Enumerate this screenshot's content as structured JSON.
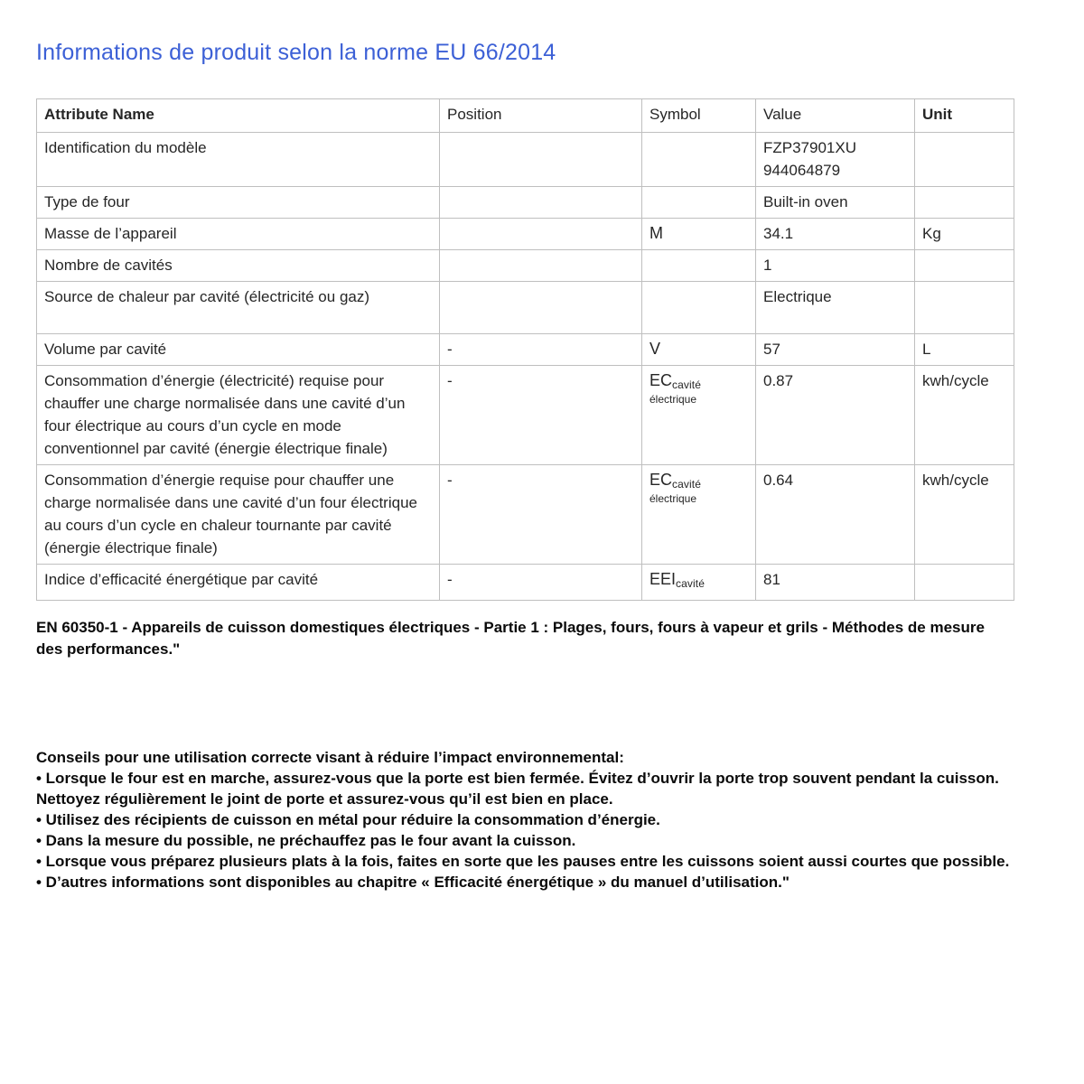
{
  "page": {
    "title": "Informations de produit selon la norme EU 66/2014",
    "title_color": "#3C60D6",
    "text_color": "#262626",
    "border_color": "#bfbfbf"
  },
  "table": {
    "headers": [
      "Attribute Name",
      "Position",
      "Symbol",
      "Value",
      "Unit"
    ],
    "rows": [
      {
        "attribute": "Identification du modèle",
        "position": "",
        "symbol": null,
        "value_lines": [
          "FZP37901XU",
          "944064879"
        ],
        "unit": ""
      },
      {
        "attribute": "Type de four",
        "position": "",
        "symbol": null,
        "value_lines": [
          "Built-in oven"
        ],
        "unit": ""
      },
      {
        "attribute": "Masse de l’appareil",
        "position": "",
        "symbol": {
          "main": "M",
          "sub": "",
          "sub_line2": ""
        },
        "value_lines": [
          "34.1"
        ],
        "unit": "Kg"
      },
      {
        "attribute": "Nombre de cavités",
        "position": "",
        "symbol": null,
        "value_lines": [
          "1"
        ],
        "unit": ""
      },
      {
        "attribute": "Source de chaleur par cavité (électricité ou gaz)",
        "position": "",
        "symbol": null,
        "value_lines": [
          "Electrique"
        ],
        "unit": "",
        "min_lines": 2
      },
      {
        "attribute": "Volume par cavité",
        "position": "-",
        "symbol": {
          "main": "V",
          "sub": "",
          "sub_line2": ""
        },
        "value_lines": [
          "57"
        ],
        "unit": "L"
      },
      {
        "attribute": "Consommation d’énergie (électricité) requise pour chauffer une charge normalisée dans une cavité d’un four électrique au cours d’un cycle en mode conventionnel par cavité (énergie électrique finale)",
        "position": "-",
        "symbol": {
          "main": "EC",
          "sub": "cavité",
          "sub_line2": "électrique"
        },
        "value_lines": [
          "0.87"
        ],
        "unit": "kwh/cycle"
      },
      {
        "attribute": "Consommation d’énergie requise pour chauffer une charge normalisée dans une cavité d’un four électrique au cours d’un cycle en chaleur tournante par cavité (énergie électrique finale)",
        "position": "-",
        "symbol": {
          "main": "EC",
          "sub": "cavité",
          "sub_line2": "électrique"
        },
        "value_lines": [
          "0.64"
        ],
        "unit": "kwh/cycle"
      },
      {
        "attribute": "Indice d’efficacité énergétique par cavité",
        "position": "-",
        "symbol": {
          "main": "EEI",
          "sub": "cavité",
          "sub_line2": ""
        },
        "value_lines": [
          "81"
        ],
        "unit": ""
      }
    ]
  },
  "standard_note": "EN 60350-1 - Appareils de cuisson domestiques électriques - Partie 1 : Plages, fours, fours à vapeur et grils - Méthodes de mesure des performances.\"",
  "tips": {
    "heading": "Conseils pour une utilisation correcte visant à réduire l’impact environnemental:",
    "items": [
      "• Lorsque le four est en marche, assurez-vous que la porte est bien fermée. Évitez d’ouvrir la porte trop souvent pendant la cuisson. Nettoyez régulièrement le joint de porte et assurez-vous qu’il est bien en place.",
      "• Utilisez des récipients de cuisson en métal pour réduire la consommation d’énergie.",
      "• Dans la mesure du possible, ne préchauffez pas le four avant la cuisson.",
      "• Lorsque vous préparez plusieurs plats à la fois, faites en sorte que les pauses entre les cuissons soient aussi courtes que possible.",
      "• D’autres informations sont disponibles au chapitre « Efficacité énergétique » du manuel d’utilisation.\""
    ]
  }
}
